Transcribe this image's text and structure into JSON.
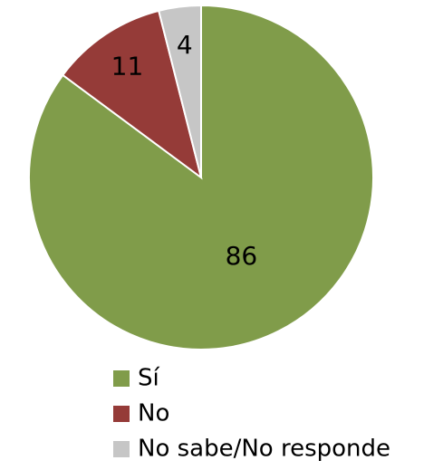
{
  "chart_data": {
    "type": "pie",
    "categories": [
      "Sí",
      "No",
      "No sabe/No responde"
    ],
    "values": [
      86,
      11,
      4
    ],
    "colors": [
      "#809c4a",
      "#953b38",
      "#c6c6c6"
    ],
    "legend": "bottom"
  }
}
